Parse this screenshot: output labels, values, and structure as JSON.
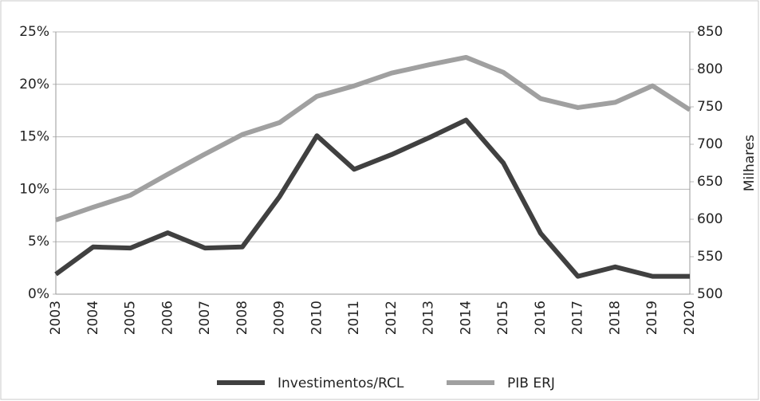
{
  "chart_data": {
    "type": "line",
    "categories": [
      "2003",
      "2004",
      "2005",
      "2006",
      "2007",
      "2008",
      "2009",
      "2010",
      "2011",
      "2012",
      "2013",
      "2014",
      "2015",
      "2016",
      "2017",
      "2018",
      "2019",
      "2020"
    ],
    "series": [
      {
        "name": "Investimentos/RCL",
        "color": "#404040",
        "values": [
          1.9,
          4.5,
          4.4,
          5.85,
          4.4,
          4.5,
          9.3,
          15.1,
          11.9,
          13.3,
          14.9,
          16.6,
          12.5,
          5.8,
          1.7,
          2.6,
          1.7,
          1.7
        ]
      },
      {
        "name": "PIB ERJ",
        "color": "#a0a0a0",
        "axis": "y2",
        "values": [
          599,
          616,
          632,
          660,
          687,
          713,
          729,
          764,
          778,
          795,
          806,
          816,
          796,
          761,
          749,
          756,
          778,
          746
        ]
      }
    ],
    "ylim": [
      0,
      25
    ],
    "yticks": [
      {
        "value": 0,
        "label": "0%"
      },
      {
        "value": 5,
        "label": "5%"
      },
      {
        "value": 10,
        "label": "10%"
      },
      {
        "value": 15,
        "label": "15%"
      },
      {
        "value": 20,
        "label": "20%"
      },
      {
        "value": 25,
        "label": "25%"
      }
    ],
    "y2lim": [
      500,
      850
    ],
    "y2ticks": [
      500,
      550,
      600,
      650,
      700,
      750,
      800,
      850
    ],
    "y2label": "Milhares",
    "grid": true,
    "legend": "bottom"
  }
}
